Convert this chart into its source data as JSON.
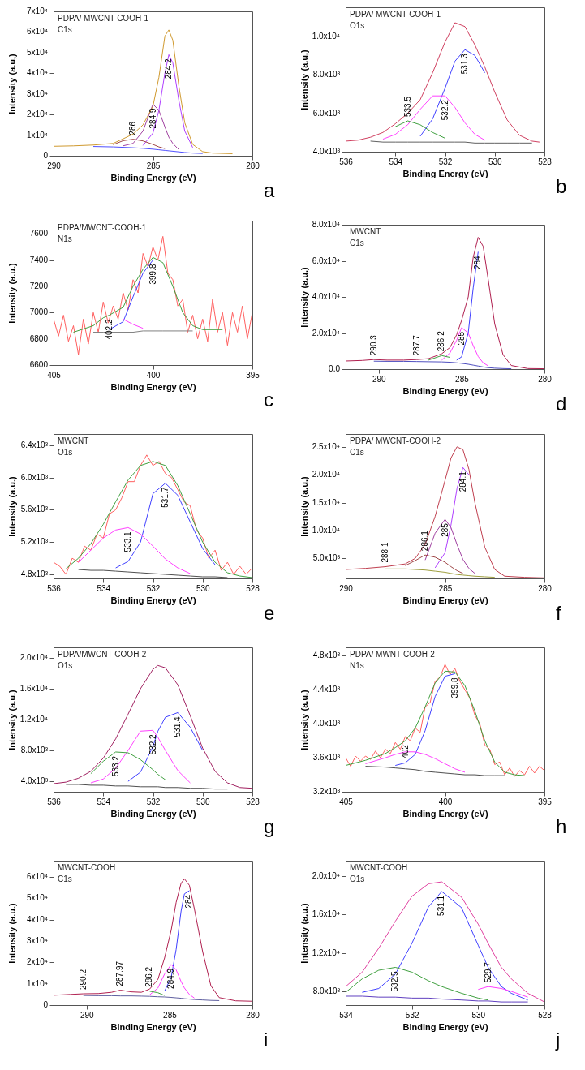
{
  "chart_data": [
    {
      "type": "line",
      "title": "PDPA/ MWCNT-COOH-1",
      "subtitle": "C1s",
      "xlabel": "Binding Energy (eV)",
      "ylabel": "Intensity (a.u,)",
      "xlim": [
        290,
        280
      ],
      "xticks": [
        290,
        285,
        280
      ],
      "ylim": [
        0,
        70000
      ],
      "yticks": [
        0,
        {
          "value": 10000,
          "label": "1x10⁴"
        },
        {
          "value": 20000,
          "label": "2x10⁴"
        },
        {
          "value": 30000,
          "label": "3x10⁴"
        },
        {
          "value": 40000,
          "label": "4x10⁴"
        },
        {
          "value": 50000,
          "label": "5x10⁴"
        },
        {
          "value": 60000,
          "label": "6x10⁴"
        },
        {
          "value": 70000,
          "label": "7x10⁴"
        }
      ],
      "x": [
        290,
        289,
        288,
        287,
        286.5,
        286,
        285.5,
        285,
        284.7,
        284.4,
        284.2,
        284,
        283.7,
        283.4,
        283,
        282.5,
        282,
        281
      ],
      "series": [
        {
          "color": "#b040ff",
          "values": [
            null,
            null,
            null,
            null,
            null,
            null,
            5000,
            11000,
            22000,
            40000,
            49000,
            45000,
            27000,
            12000,
            4000,
            null,
            null,
            null
          ]
        },
        {
          "color": "#a040a0",
          "values": [
            null,
            null,
            null,
            null,
            4800,
            6000,
            12000,
            25000,
            22000,
            14000,
            9000,
            6000,
            3000,
            null,
            null,
            null,
            null,
            null
          ]
        },
        {
          "color": "#a04848",
          "values": [
            null,
            null,
            null,
            5400,
            7300,
            8000,
            7200,
            5500,
            4300,
            3500,
            null,
            null,
            null,
            null,
            null,
            null,
            null,
            null
          ]
        },
        {
          "color": "#5050ff",
          "values": [
            null,
            null,
            4500,
            4300,
            4100,
            3900,
            3600,
            3200,
            2900,
            2600,
            2400,
            2200,
            1900,
            1600,
            1300,
            1100,
            null,
            null
          ]
        },
        {
          "color": "#d09a30",
          "values": [
            4600,
            4800,
            5200,
            6000,
            8200,
            10500,
            15000,
            24000,
            38000,
            58000,
            61000,
            56000,
            34000,
            16000,
            5500,
            2000,
            1300,
            1000
          ]
        }
      ],
      "annotations": [
        {
          "text": "286",
          "x": 286,
          "y": 8000
        },
        {
          "text": "284.9",
          "x": 285,
          "y": 25000
        },
        {
          "text": "284.2",
          "x": 284.2,
          "y": 49000
        },
        "a"
      ]
    },
    {
      "type": "line",
      "title": "PDPA/ MWCNT-COOH-1",
      "subtitle": "O1s",
      "xlabel": "Binding Energy (eV)",
      "ylabel": "Intensity (a.u,)",
      "xlim": [
        536,
        528
      ],
      "xticks": [
        536,
        534,
        532,
        530,
        528
      ],
      "ylim": [
        4000,
        11500
      ],
      "yticks": [
        {
          "value": 4000,
          "label": "4.0x10³"
        },
        {
          "value": 6000,
          "label": "6.0x10³"
        },
        {
          "value": 8000,
          "label": "8.0x10³"
        },
        {
          "value": 10000,
          "label": "1.0x10⁴"
        }
      ],
      "x": [
        536,
        535.5,
        535,
        534.5,
        534,
        533.5,
        533,
        532.5,
        532,
        531.6,
        531.2,
        530.8,
        530.4,
        530,
        529.5,
        529,
        528.5,
        528.2
      ],
      "series": [
        {
          "color": "#4040ff",
          "values": [
            null,
            null,
            null,
            null,
            null,
            null,
            4800,
            5700,
            7300,
            8700,
            9300,
            9000,
            8100,
            null,
            null,
            null,
            null,
            null
          ]
        },
        {
          "color": "#ff40ff",
          "values": [
            null,
            null,
            null,
            4650,
            4900,
            5400,
            6200,
            6900,
            6900,
            6300,
            5500,
            4900,
            4600,
            null,
            null,
            null,
            null,
            null
          ]
        },
        {
          "color": "#40a040",
          "values": [
            null,
            null,
            null,
            null,
            5300,
            5600,
            5400,
            5000,
            4700,
            null,
            null,
            null,
            null,
            null,
            null,
            null,
            null,
            null
          ]
        },
        {
          "color": "#606060",
          "values": [
            null,
            null,
            4550,
            4500,
            4500,
            4500,
            4500,
            4500,
            4500,
            4500,
            4500,
            4450,
            4450,
            4450,
            4450,
            4450,
            4450,
            null
          ]
        },
        {
          "color": "#d04060",
          "values": [
            4550,
            4600,
            4750,
            5000,
            5450,
            6000,
            6700,
            8100,
            9700,
            10700,
            10500,
            9550,
            8400,
            7100,
            5650,
            4850,
            4550,
            4500
          ]
        }
      ],
      "annotations": [
        {
          "text": "533.5",
          "x": 533.5,
          "y": 5600
        },
        {
          "text": "532.2",
          "x": 532,
          "y": 6900
        },
        {
          "text": "531.3",
          "x": 531.2,
          "y": 9300
        },
        "b"
      ]
    },
    {
      "type": "line",
      "title": "PDPA/MWCNT-COOH-1",
      "subtitle": "N1s",
      "xlabel": "Binding Energy (eV)",
      "ylabel": "Intensity (a.u.)",
      "xlim": [
        405,
        395
      ],
      "xticks": [
        405,
        400,
        395
      ],
      "ylim": [
        6600,
        7700
      ],
      "yticks": [
        6600,
        6800,
        7000,
        7200,
        7400,
        7600
      ],
      "x": [
        404,
        403,
        402.5,
        402.2,
        401.5,
        401,
        400.5,
        400,
        399.5,
        399,
        398.5,
        398,
        397.5,
        397,
        396.5
      ],
      "series": [
        {
          "color": "#ff6060",
          "x": [
            405,
            404.75,
            404.5,
            404.25,
            404,
            403.75,
            403.5,
            403.25,
            403,
            402.75,
            402.5,
            402.25,
            402,
            401.75,
            401.5,
            401.25,
            401,
            400.75,
            400.5,
            400.25,
            400,
            399.75,
            399.5,
            399.25,
            399,
            398.75,
            398.5,
            398.25,
            398,
            397.75,
            397.5,
            397.25,
            397,
            396.75,
            396.5,
            396.25,
            396,
            395.75,
            395.5,
            395.25,
            395
          ],
          "values": [
            6950,
            6820,
            6980,
            6780,
            6900,
            6680,
            6950,
            6760,
            7000,
            6850,
            7080,
            6920,
            7050,
            6950,
            7150,
            7020,
            7250,
            7150,
            7450,
            7350,
            7500,
            7400,
            7580,
            7300,
            7250,
            7050,
            7100,
            6850,
            6980,
            6800,
            6950,
            6780,
            7100,
            6850,
            7000,
            6750,
            7000,
            6850,
            7050,
            6800,
            7000
          ]
        },
        {
          "color": "#4040ff",
          "values": [
            null,
            null,
            null,
            6870,
            6930,
            7120,
            7300,
            7400,
            null,
            null,
            null,
            null,
            null,
            null,
            null
          ]
        },
        {
          "color": "#ff40ff",
          "values": [
            null,
            null,
            null,
            null,
            6950,
            6910,
            6880,
            null,
            null,
            null,
            null,
            null,
            null,
            null,
            null
          ]
        },
        {
          "color": "#808080",
          "values": [
            null,
            6850,
            6850,
            6850,
            6850,
            6850,
            6860,
            6860,
            6860,
            6860,
            6860,
            6860,
            null,
            null,
            null
          ]
        },
        {
          "color": "#40a040",
          "values": [
            6850,
            6900,
            6960,
            6980,
            7040,
            7200,
            7330,
            7420,
            7380,
            7200,
            7000,
            6900,
            6870,
            6870,
            6870
          ]
        }
      ],
      "annotations": [
        {
          "text": "402.2",
          "x": 402.2,
          "y": 6980
        },
        {
          "text": "399.8",
          "x": 400,
          "y": 7400
        },
        "c"
      ]
    },
    {
      "type": "line",
      "title": "MWCNT",
      "subtitle": "C1s",
      "xlabel": "Binding Energy (eV)",
      "ylabel": "Intensity (a.u.)",
      "xlim": [
        292,
        280
      ],
      "xticks": [
        290,
        285,
        280
      ],
      "ylim": [
        0,
        80000
      ],
      "yticks": [
        {
          "value": 0,
          "label": "0.0"
        },
        {
          "value": 20000,
          "label": "2.0x10⁴"
        },
        {
          "value": 40000,
          "label": "4.0x10⁴"
        },
        {
          "value": 60000,
          "label": "6.0x10⁴"
        },
        {
          "value": 80000,
          "label": "8.0x10⁴"
        }
      ],
      "x": [
        292,
        291,
        290.3,
        289.5,
        288.5,
        287.7,
        287,
        286.2,
        285.7,
        285.3,
        285,
        284.6,
        284.3,
        284,
        283.7,
        283.4,
        283,
        282.5,
        282,
        281,
        280
      ],
      "series": [
        {
          "color": "#4040ff",
          "values": [
            null,
            null,
            null,
            null,
            null,
            null,
            null,
            null,
            null,
            5000,
            6800,
            20000,
            45000,
            65000,
            null,
            null,
            null,
            null,
            null,
            null,
            null
          ]
        },
        {
          "color": "#ff40ff",
          "values": [
            null,
            null,
            null,
            null,
            null,
            null,
            null,
            5000,
            9000,
            16000,
            23000,
            20000,
            13000,
            7000,
            3500,
            1800,
            null,
            null,
            null,
            null,
            null
          ]
        },
        {
          "color": "#40a040",
          "values": [
            null,
            null,
            null,
            null,
            null,
            null,
            5000,
            7500,
            6500,
            null,
            null,
            null,
            null,
            null,
            null,
            null,
            null,
            null,
            null,
            null,
            null
          ]
        },
        {
          "color": "#5050c0",
          "values": [
            null,
            null,
            4400,
            4300,
            4300,
            4200,
            4100,
            4000,
            3800,
            3500,
            3200,
            2700,
            2200,
            1700,
            1200,
            800,
            500,
            300,
            200,
            null,
            null
          ]
        },
        {
          "color": "#b02050",
          "values": [
            4500,
            4800,
            5300,
            5000,
            5000,
            5300,
            5800,
            8500,
            12000,
            19000,
            27000,
            40000,
            62000,
            73000,
            68000,
            50000,
            25000,
            8000,
            2000,
            300,
            200
          ]
        }
      ],
      "annotations": [
        {
          "text": "290.3",
          "x": 290.3,
          "y": 5300
        },
        {
          "text": "287.7",
          "x": 287.7,
          "y": 5300
        },
        {
          "text": "286.2",
          "x": 286.2,
          "y": 7500
        },
        {
          "text": "285",
          "x": 285,
          "y": 23000
        },
        {
          "text": "284",
          "x": 284,
          "y": 65000
        },
        "d"
      ]
    },
    {
      "type": "line",
      "title": "MWCNT",
      "subtitle": "O1s",
      "xlabel": "Binding Energy (eV)",
      "ylabel": "Intensity (a.u.)",
      "xlim": [
        536,
        528
      ],
      "xticks": [
        536,
        534,
        532,
        530,
        528
      ],
      "ylim": [
        4750,
        6540
      ],
      "yticks": [
        {
          "value": 4800,
          "label": "4.8x10³"
        },
        {
          "value": 5200,
          "label": "5.2x10³"
        },
        {
          "value": 5600,
          "label": "5.6x10³"
        },
        {
          "value": 6000,
          "label": "6.0x10³"
        },
        {
          "value": 6400,
          "label": "6.4x10³"
        }
      ],
      "x": [
        535.5,
        535,
        534.5,
        534,
        533.5,
        533,
        532.5,
        532,
        531.5,
        531,
        530.5,
        530,
        529.5,
        529,
        528.5,
        528
      ],
      "series": [
        {
          "color": "#ff6060",
          "x": [
            536,
            535.75,
            535.5,
            535.25,
            535,
            534.75,
            534.5,
            534.25,
            534,
            533.75,
            533.5,
            533.25,
            533,
            532.75,
            532.5,
            532.25,
            532,
            531.75,
            531.5,
            531.25,
            531,
            530.75,
            530.5,
            530.25,
            530,
            529.75,
            529.5,
            529.25,
            529,
            528.75,
            528.5,
            528.25,
            528
          ],
          "values": [
            4950,
            4900,
            4800,
            5000,
            4950,
            5150,
            5100,
            5300,
            5250,
            5550,
            5600,
            5750,
            5950,
            5950,
            6150,
            6280,
            6150,
            6200,
            6050,
            6000,
            5850,
            5700,
            5650,
            5350,
            5250,
            5000,
            5100,
            4850,
            4950,
            4800,
            4900,
            4800,
            4880
          ]
        },
        {
          "color": "#4040ff",
          "values": [
            null,
            null,
            null,
            null,
            4880,
            4960,
            5200,
            5800,
            5930,
            5780,
            5450,
            5120,
            4920,
            null,
            null,
            null
          ]
        },
        {
          "color": "#ff40ff",
          "values": [
            null,
            4950,
            5100,
            5250,
            5350,
            5380,
            5300,
            5150,
            4990,
            4880,
            4810,
            null,
            null,
            null,
            null,
            null
          ]
        },
        {
          "color": "#505050",
          "values": [
            null,
            4860,
            4850,
            4850,
            4840,
            4830,
            4820,
            4810,
            4800,
            4790,
            4780,
            4770,
            4770,
            4760,
            null,
            null
          ]
        },
        {
          "color": "#40a040",
          "values": [
            4870,
            5000,
            5180,
            5420,
            5700,
            5970,
            6150,
            6200,
            6150,
            5900,
            5550,
            5200,
            4950,
            4820,
            4780,
            4760
          ]
        }
      ],
      "annotations": [
        {
          "text": "533.1",
          "x": 533,
          "y": 5380
        },
        {
          "text": "531.7",
          "x": 531.5,
          "y": 5930
        },
        "e"
      ]
    },
    {
      "type": "line",
      "title": "PDPA/ MWCNT-COOH-2",
      "subtitle": "C1s",
      "xlabel": "Binding Energy (eV)",
      "ylabel": "Intensity (a.u.)",
      "xlim": [
        290,
        280
      ],
      "xticks": [
        290,
        285,
        280
      ],
      "ylim": [
        1400,
        27300
      ],
      "yticks": [
        {
          "value": 5000,
          "label": "5.0x10³"
        },
        {
          "value": 10000,
          "label": "1.0x10⁴"
        },
        {
          "value": 15000,
          "label": "1.5x10⁴"
        },
        {
          "value": 20000,
          "label": "2.0x10⁴"
        },
        {
          "value": 25000,
          "label": "2.5x10⁴"
        }
      ],
      "x": [
        290,
        289,
        288,
        287,
        286.5,
        286,
        285.5,
        285,
        284.7,
        284.4,
        284.1,
        283.8,
        283.5,
        283,
        282.5,
        282,
        281,
        280
      ],
      "series": [
        {
          "color": "#b040ff",
          "values": [
            null,
            null,
            null,
            null,
            null,
            null,
            3300,
            6000,
            11000,
            17500,
            21300,
            20000,
            null,
            null,
            null,
            null,
            null,
            null
          ]
        },
        {
          "color": "#a040a0",
          "values": [
            null,
            null,
            null,
            null,
            null,
            4700,
            9500,
            12000,
            10500,
            7500,
            4800,
            3200,
            2300,
            null,
            null,
            null,
            null,
            null
          ]
        },
        {
          "color": "#a04848",
          "values": [
            null,
            null,
            null,
            3700,
            4600,
            5600,
            5200,
            4300,
            3500,
            2800,
            2300,
            null,
            null,
            null,
            null,
            null,
            null,
            null
          ]
        },
        {
          "color": "#a0a040",
          "values": [
            null,
            null,
            3100,
            3100,
            3000,
            2900,
            2700,
            2500,
            2300,
            2100,
            2000,
            1900,
            1800,
            1700,
            1600,
            null,
            null,
            null
          ]
        },
        {
          "color": "#c04050",
          "values": [
            3000,
            3200,
            3500,
            4000,
            5000,
            7500,
            12500,
            19000,
            23000,
            25000,
            24500,
            21000,
            15000,
            7000,
            3000,
            1800,
            1600,
            1500
          ]
        }
      ],
      "annotations": [
        {
          "text": "288.1",
          "x": 288,
          "y": 3500
        },
        {
          "text": "286.1",
          "x": 286,
          "y": 5600
        },
        {
          "text": "285",
          "x": 285,
          "y": 12000
        },
        {
          "text": "284.1",
          "x": 284.1,
          "y": 21300
        },
        "f"
      ]
    },
    {
      "type": "line",
      "title": "PDPA/MWCNT-COOH-2",
      "subtitle": "O1s",
      "xlabel": "Binding Energy (eV)",
      "ylabel": "Intensity (a.u.)",
      "xlim": [
        536,
        528
      ],
      "xticks": [
        536,
        534,
        532,
        530,
        528
      ],
      "ylim": [
        2650,
        21350
      ],
      "yticks": [
        {
          "value": 4000,
          "label": "4.0x10³"
        },
        {
          "value": 8000,
          "label": "8.0x10³"
        },
        {
          "value": 12000,
          "label": "1.2x10⁴"
        },
        {
          "value": 16000,
          "label": "1.6x10⁴"
        },
        {
          "value": 20000,
          "label": "2.0x10⁴"
        }
      ],
      "x": [
        536,
        535.5,
        535,
        534.5,
        534,
        533.5,
        533,
        532.5,
        532,
        531.8,
        531.5,
        531,
        530.5,
        530,
        529.5,
        529,
        528.5,
        528
      ],
      "series": [
        {
          "color": "#4040ff",
          "values": [
            null,
            null,
            null,
            null,
            null,
            null,
            4000,
            5200,
            8500,
            10500,
            12300,
            12900,
            11000,
            8000,
            null,
            null,
            null,
            null
          ]
        },
        {
          "color": "#ff40ff",
          "values": [
            null,
            null,
            null,
            3800,
            4300,
            5700,
            8000,
            10500,
            10600,
            9700,
            8000,
            5400,
            3800,
            null,
            null,
            null,
            null,
            null
          ]
        },
        {
          "color": "#40a040",
          "values": [
            null,
            null,
            null,
            5000,
            6600,
            7800,
            7700,
            6800,
            5500,
            4900,
            4200,
            null,
            null,
            null,
            null,
            null,
            null,
            null
          ]
        },
        {
          "color": "#505050",
          "values": [
            null,
            3600,
            3600,
            3500,
            3500,
            3400,
            3400,
            3300,
            3300,
            3300,
            3200,
            3200,
            3100,
            3100,
            3000,
            3000,
            null,
            null
          ]
        },
        {
          "color": "#a02060",
          "values": [
            3700,
            3900,
            4400,
            5300,
            7000,
            9500,
            12700,
            16000,
            18500,
            19000,
            18700,
            16500,
            12500,
            8300,
            5300,
            3800,
            3200,
            3100
          ]
        }
      ],
      "annotations": [
        {
          "text": "533.2",
          "x": 533.5,
          "y": 7800
        },
        {
          "text": "532.2",
          "x": 532,
          "y": 10600
        },
        {
          "text": "531.4",
          "x": 531,
          "y": 12900
        },
        "g"
      ]
    },
    {
      "type": "line",
      "title": "PDPA/ MWNT-COOH-2",
      "subtitle": "N1s",
      "xlabel": "Binding Energy (eV)",
      "ylabel": "Intensity (a.u.)",
      "xlim": [
        405,
        395
      ],
      "xticks": [
        405,
        400,
        395
      ],
      "ylim": [
        3200,
        4900
      ],
      "yticks": [
        {
          "value": 3200,
          "label": "3.2x10³"
        },
        {
          "value": 3600,
          "label": "3.6x10³"
        },
        {
          "value": 4000,
          "label": "4.0x10³"
        },
        {
          "value": 4400,
          "label": "4.4x10³"
        },
        {
          "value": 4800,
          "label": "4.8x10³"
        }
      ],
      "x": [
        405,
        404,
        403,
        402.5,
        402,
        401.5,
        401,
        400.5,
        400,
        399.5,
        399,
        398.5,
        398,
        397.5,
        397,
        396.5,
        396
      ],
      "series": [
        {
          "color": "#ff6060",
          "x": [
            405,
            404.75,
            404.5,
            404.25,
            404,
            403.75,
            403.5,
            403.25,
            403,
            402.75,
            402.5,
            402.25,
            402,
            401.75,
            401.5,
            401.25,
            401,
            400.75,
            400.5,
            400.25,
            400,
            399.75,
            399.5,
            399.25,
            399,
            398.75,
            398.5,
            398.25,
            398,
            397.75,
            397.5,
            397.25,
            397,
            396.75,
            396.5,
            396.25,
            396,
            395.75,
            395.5,
            395.25,
            395
          ],
          "values": [
            3600,
            3500,
            3620,
            3560,
            3620,
            3580,
            3680,
            3600,
            3700,
            3650,
            3780,
            3700,
            3850,
            3800,
            3950,
            3900,
            4200,
            4250,
            4500,
            4550,
            4700,
            4580,
            4650,
            4500,
            4400,
            4300,
            4100,
            4000,
            3750,
            3700,
            3520,
            3550,
            3400,
            3480,
            3380,
            3450,
            3400,
            3500,
            3420,
            3500,
            3450
          ]
        },
        {
          "color": "#4040ff",
          "values": [
            null,
            null,
            null,
            3510,
            3540,
            3640,
            3920,
            4320,
            4560,
            4590,
            null,
            null,
            null,
            null,
            null,
            null,
            null
          ]
        },
        {
          "color": "#ff40ff",
          "values": [
            null,
            3530,
            3600,
            3640,
            3670,
            3670,
            3640,
            3590,
            3530,
            3470,
            3430,
            null,
            null,
            null,
            null,
            null,
            null
          ]
        },
        {
          "color": "#505050",
          "values": [
            null,
            3500,
            3490,
            3480,
            3470,
            3460,
            3440,
            3430,
            3420,
            3410,
            3400,
            3400,
            3390,
            3390,
            3390,
            null,
            null
          ]
        },
        {
          "color": "#40a040",
          "values": [
            3510,
            3570,
            3650,
            3720,
            3800,
            3950,
            4200,
            4480,
            4620,
            4610,
            4450,
            4150,
            3800,
            3550,
            3430,
            3400,
            3390
          ]
        }
      ],
      "annotations": [
        {
          "text": "402",
          "x": 402,
          "y": 3800
        },
        {
          "text": "399.8",
          "x": 399.5,
          "y": 4590
        },
        "h"
      ]
    },
    {
      "type": "line",
      "title": "MWCNT-COOH",
      "subtitle": "C1s",
      "xlabel": "Binding Energy (eV)",
      "ylabel": "Intensity (a.u.)",
      "xlim": [
        292,
        280
      ],
      "xticks": [
        290,
        285,
        280
      ],
      "ylim": [
        0,
        67500
      ],
      "yticks": [
        0,
        {
          "value": 10000,
          "label": "1x10⁴"
        },
        {
          "value": 20000,
          "label": "2x10⁴"
        },
        {
          "value": 30000,
          "label": "3x10⁴"
        },
        {
          "value": 40000,
          "label": "4x10⁴"
        },
        {
          "value": 50000,
          "label": "5x10⁴"
        },
        {
          "value": 60000,
          "label": "6x10⁴"
        }
      ],
      "x": [
        292,
        291,
        290.2,
        289.3,
        288.5,
        287.97,
        287.3,
        286.7,
        286.2,
        285.7,
        285.3,
        284.9,
        284.6,
        284.3,
        284.1,
        283.8,
        283.5,
        283,
        282.5,
        282,
        281,
        280
      ],
      "series": [
        {
          "color": "#4040ff",
          "values": [
            null,
            null,
            null,
            null,
            null,
            null,
            null,
            null,
            null,
            null,
            6500,
            13000,
            26000,
            44000,
            52000,
            53500,
            null,
            null,
            null,
            null,
            null,
            null
          ]
        },
        {
          "color": "#ff40ff",
          "values": [
            null,
            null,
            null,
            null,
            null,
            null,
            null,
            null,
            4800,
            8000,
            14500,
            19000,
            16500,
            11000,
            8000,
            5000,
            3300,
            null,
            null,
            null,
            null,
            null
          ]
        },
        {
          "color": "#40a040",
          "values": [
            null,
            null,
            null,
            null,
            null,
            null,
            null,
            null,
            6500,
            5800,
            4500,
            null,
            null,
            null,
            null,
            null,
            null,
            null,
            null,
            null,
            null,
            null
          ]
        },
        {
          "color": "#6060a0",
          "values": [
            null,
            null,
            4500,
            4400,
            4400,
            4300,
            4300,
            4200,
            4100,
            3900,
            3800,
            3600,
            3400,
            3200,
            3000,
            2800,
            2600,
            2400,
            2200,
            2100,
            null,
            null
          ]
        },
        {
          "color": "#b02050",
          "values": [
            4600,
            5000,
            5300,
            5400,
            6000,
            7000,
            6200,
            6000,
            7500,
            12000,
            22000,
            35000,
            48000,
            57000,
            59000,
            56000,
            45000,
            25000,
            9000,
            3500,
            2000,
            1800
          ]
        }
      ],
      "annotations": [
        {
          "text": "290.2",
          "x": 290.2,
          "y": 5300
        },
        {
          "text": "287.97",
          "x": 287.97,
          "y": 7000
        },
        {
          "text": "286.2",
          "x": 286.2,
          "y": 6500
        },
        {
          "text": "284.9",
          "x": 284.9,
          "y": 19000
        },
        {
          "text": "284",
          "x": 283.8,
          "y": 53500
        },
        "i"
      ]
    },
    {
      "type": "line",
      "title": "MWCNT-COOH",
      "subtitle": "O1s",
      "xlabel": "Binding Energy (eV)",
      "ylabel": "Intensity (a.u.)",
      "xlim": [
        534,
        528
      ],
      "xticks": [
        534,
        532,
        530,
        528
      ],
      "ylim": [
        6570,
        21600
      ],
      "yticks": [
        {
          "value": 8000,
          "label": "8.0x10³"
        },
        {
          "value": 12000,
          "label": "1.2x10⁴"
        },
        {
          "value": 16000,
          "label": "1.6x10⁴"
        },
        {
          "value": 20000,
          "label": "2.0x10⁴"
        }
      ],
      "x": [
        534,
        533.5,
        533,
        532.5,
        532,
        531.5,
        531.1,
        530.5,
        530,
        529.7,
        529.3,
        529,
        528.5,
        528
      ],
      "series": [
        {
          "color": "#4040ff",
          "values": [
            null,
            7900,
            8300,
            9800,
            13000,
            16800,
            18400,
            16700,
            12800,
            10500,
            8500,
            7800,
            7100,
            null
          ]
        },
        {
          "color": "#40a040",
          "values": [
            7900,
            9300,
            10200,
            10500,
            10000,
            9100,
            8500,
            7800,
            7300,
            7100,
            null,
            null,
            null,
            null
          ]
        },
        {
          "color": "#ff40ff",
          "values": [
            null,
            null,
            null,
            null,
            null,
            null,
            null,
            null,
            8200,
            8500,
            8300,
            8000,
            7400,
            null
          ]
        },
        {
          "color": "#6040c0",
          "values": [
            7500,
            7500,
            7400,
            7400,
            7300,
            7300,
            7200,
            7100,
            7000,
            7000,
            6900,
            6900,
            6900,
            null
          ]
        },
        {
          "color": "#e040a0",
          "values": [
            8500,
            10000,
            12500,
            15300,
            17900,
            19200,
            19400,
            17800,
            15000,
            13000,
            10500,
            9300,
            7800,
            6900
          ]
        }
      ],
      "annotations": [
        {
          "text": "532.5",
          "x": 532.5,
          "y": 10500
        },
        {
          "text": "531.1",
          "x": 531.1,
          "y": 18400
        },
        {
          "text": "529.7",
          "x": 529.7,
          "y": 8500
        },
        "j"
      ]
    }
  ]
}
